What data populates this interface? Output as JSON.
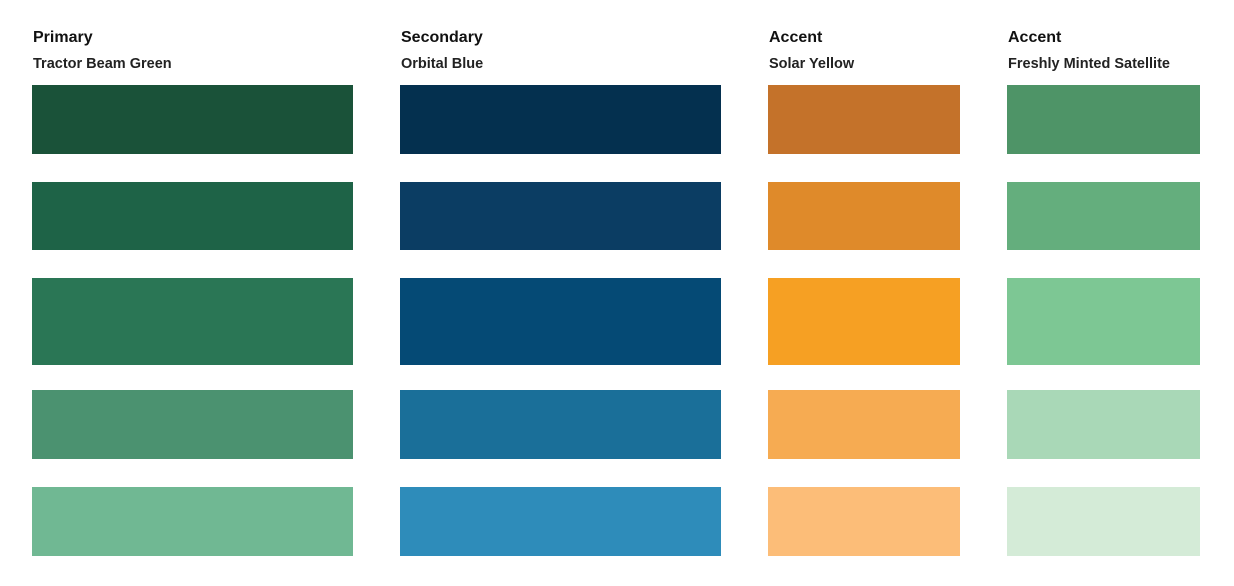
{
  "columns": [
    {
      "role": "Primary",
      "name": "Tractor Beam Green",
      "colors": [
        "#1a5239",
        "#1e6347",
        "#2a7655",
        "#4b9270",
        "#70b893"
      ]
    },
    {
      "role": "Secondary",
      "name": "Orbital Blue",
      "colors": [
        "#04304f",
        "#0b3d63",
        "#054a75",
        "#1a6f99",
        "#2e8cba"
      ]
    },
    {
      "role": "Accent",
      "name": "Solar Yellow",
      "colors": [
        "#c4722a",
        "#df8a2a",
        "#f6a023",
        "#f6ab52",
        "#fcbd78"
      ]
    },
    {
      "role": "Accent",
      "name": "Freshly Minted Satellite",
      "colors": [
        "#4e9467",
        "#64ae7d",
        "#7dc794",
        "#a9d8b7",
        "#d4ebd7"
      ]
    }
  ]
}
